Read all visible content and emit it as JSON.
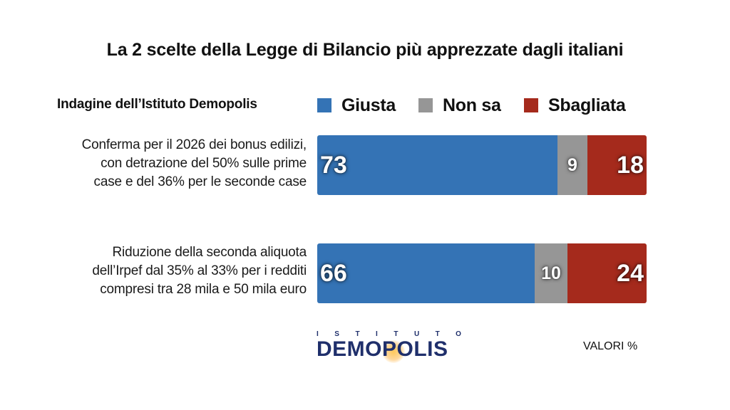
{
  "title": "La 2 scelte della Legge di Bilancio più apprezzate dagli italiani",
  "subtitle": "Indagine dell’Istituto Demopolis",
  "legend": [
    {
      "label": "Giusta",
      "color": "#3473b5"
    },
    {
      "label": "Non sa",
      "color": "#969696"
    },
    {
      "label": "Sbagliata",
      "color": "#a52a1c"
    }
  ],
  "chart_data": {
    "type": "bar",
    "orientation": "horizontal",
    "stacked": true,
    "title": "La 2 scelte della Legge di Bilancio più apprezzate dagli italiani",
    "categories": [
      "Conferma per il 2026 dei bonus edilizi, con detrazione del 50% sulle prime case e del 36% per le seconde case",
      "Riduzione della seconda aliquota dell’Irpef dal 35% al 33% per i redditi compresi tra 28 mila e 50 mila euro"
    ],
    "category_lines": [
      [
        "Conferma per il 2026 dei bonus edilizi,",
        "con detrazione del 50% sulle prime",
        "case e del 36% per le seconde case"
      ],
      [
        "Riduzione della seconda aliquota",
        "dell’Irpef dal 35% al 33% per i redditi",
        "compresi tra 28 mila e 50 mila euro"
      ]
    ],
    "series": [
      {
        "name": "Giusta",
        "color": "#3473b5",
        "values": [
          73,
          66
        ]
      },
      {
        "name": "Non sa",
        "color": "#969696",
        "values": [
          9,
          10
        ]
      },
      {
        "name": "Sbagliata",
        "color": "#a52a1c",
        "values": [
          18,
          24
        ]
      }
    ],
    "xlim": [
      0,
      100
    ],
    "legend_position": "top",
    "unit_note": "VALORI %"
  },
  "logo": {
    "top_text": "ISTITUTO",
    "main_text": "DEMOPOLIS"
  },
  "footer_note": "VALORI %"
}
